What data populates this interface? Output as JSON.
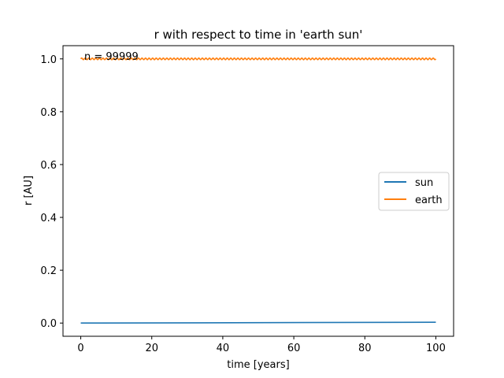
{
  "chart_data": {
    "type": "line",
    "title": "r with respect to time in 'earth sun'",
    "xlabel": "time [years]",
    "ylabel": "r [AU]",
    "xlim": [
      -5,
      105
    ],
    "ylim": [
      -0.05,
      1.05
    ],
    "xticks": [
      0,
      20,
      40,
      60,
      80,
      100
    ],
    "yticks": [
      0.0,
      0.2,
      0.4,
      0.6,
      0.8,
      1.0
    ],
    "xtick_labels": [
      "0",
      "20",
      "40",
      "60",
      "80",
      "100"
    ],
    "ytick_labels": [
      "0.0",
      "0.2",
      "0.4",
      "0.6",
      "0.8",
      "1.0"
    ],
    "grid": false,
    "legend_position": "center-right",
    "annotation": "n = 99999",
    "series": [
      {
        "name": "sun",
        "color": "#1f77b4",
        "x": [
          0,
          100
        ],
        "y": [
          0.0,
          0.003
        ]
      },
      {
        "name": "earth",
        "color": "#ff7f0e",
        "x_range": [
          0,
          100
        ],
        "y_center": 1.0,
        "oscillation_amplitude": 0.003,
        "oscillation_cycles": 100
      }
    ]
  }
}
